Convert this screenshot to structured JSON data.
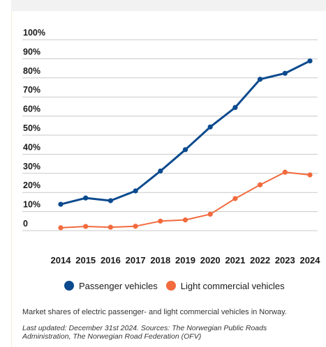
{
  "colors": {
    "passenger": "#0b4a8e",
    "commercial": "#f26a3d",
    "grid": "#c8c8c8",
    "axis_text": "#1a1a1a"
  },
  "legend": {
    "passenger": "Passenger vehicles",
    "commercial": "Light commercial vehicles"
  },
  "caption": "Market shares of electric passenger- and light commercial vehicles in Norway.",
  "updated": "Last updated: December 31st 2024. Sources: The Norwegian Public Roads Administration, The Norwegian Road Federation (OFV)",
  "chart_data": {
    "type": "line",
    "x": [
      "2014",
      "2015",
      "2016",
      "2017",
      "2018",
      "2019",
      "2020",
      "2021",
      "2022",
      "2023",
      "2024"
    ],
    "y_ticks": [
      "0",
      "10%",
      "20%",
      "30%",
      "40%",
      "50%",
      "60%",
      "70%",
      "80%",
      "90%",
      "100%"
    ],
    "ylim": [
      0,
      100
    ],
    "grid": true,
    "legend_position": "bottom",
    "series": [
      {
        "name": "Passenger vehicles",
        "color": "#0b4a8e",
        "values": [
          13.8,
          17.1,
          15.7,
          20.8,
          31.2,
          42.4,
          54.3,
          64.5,
          79.3,
          82.4,
          88.9
        ]
      },
      {
        "name": "Light commercial vehicles",
        "color": "#f26a3d",
        "values": [
          1.5,
          2.2,
          1.8,
          2.3,
          5.0,
          5.6,
          8.6,
          16.8,
          24.0,
          30.6,
          29.2
        ]
      }
    ]
  }
}
